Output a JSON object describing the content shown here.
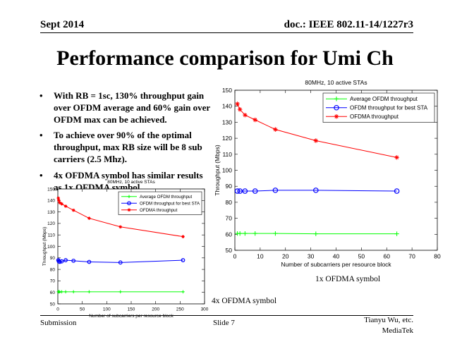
{
  "header": {
    "left": "Sept 2014",
    "right": "doc.: IEEE 802.11-14/1227r3"
  },
  "title": "Performance comparison for Umi Ch",
  "bullets": [
    "With RB = 1sc, 130% throughput gain over OFDM average and 60% gain over OFDM max can be achieved.",
    "To achieve over 90% of the optimal throughput, max RB size will be 8 sub carriers (2.5 Mhz).",
    "4x OFDMA symbol has similar results as 1x OFDMA symbol."
  ],
  "bullet_glyph": "•",
  "notes": {
    "right": "1x OFDMA symbol",
    "left": "4x OFDMA symbol"
  },
  "footer": {
    "left": "Submission",
    "center": "Slide 7",
    "right_line1": "Tianyu Wu, etc.",
    "right_line2": "MediaTek"
  },
  "colors": {
    "average": "#00ff00",
    "best_sta": "#0000ff",
    "ofdma": "#ff0000"
  },
  "chart_data": [
    {
      "id": "right",
      "type": "line",
      "title": "80MHz, 10 active STAs",
      "xlabel": "Number of subcarriers per resource block",
      "ylabel": "Throughput (Mbps)",
      "xlim": [
        0,
        80
      ],
      "ylim": [
        50,
        150
      ],
      "xticks": [
        0,
        10,
        20,
        30,
        40,
        50,
        60,
        70,
        80
      ],
      "yticks": [
        50,
        60,
        70,
        80,
        90,
        100,
        110,
        120,
        130,
        140,
        150
      ],
      "legend_position": "top-right",
      "grid": false,
      "series": [
        {
          "name": "Average OFDM throughput",
          "color": "#00ff00",
          "marker": "plus",
          "x": [
            1,
            2,
            4,
            8,
            16,
            32,
            64
          ],
          "y": [
            60.5,
            60.5,
            60.5,
            60.5,
            60.5,
            60.3,
            60.3
          ]
        },
        {
          "name": "OFDM throughput for best STA",
          "color": "#0000ff",
          "marker": "circle",
          "x": [
            1,
            2,
            4,
            8,
            16,
            32,
            64
          ],
          "y": [
            87,
            87,
            87,
            87,
            87.5,
            87.5,
            87
          ]
        },
        {
          "name": "OFDMA throughput",
          "color": "#ff0000",
          "marker": "star",
          "x": [
            1,
            2,
            4,
            8,
            16,
            32,
            64
          ],
          "y": [
            141.5,
            138,
            134.5,
            131.5,
            125.5,
            118.5,
            108
          ]
        }
      ]
    },
    {
      "id": "left",
      "type": "line",
      "title": "80MHz, 10 active STAs",
      "xlabel": "Number of subcarriers per resource block",
      "ylabel": "Throughput (Mbps)",
      "xlim": [
        0,
        300
      ],
      "ylim": [
        50,
        150
      ],
      "xticks": [
        0,
        50,
        100,
        150,
        200,
        250,
        300
      ],
      "yticks": [
        50,
        60,
        70,
        80,
        90,
        100,
        110,
        120,
        130,
        140,
        150
      ],
      "legend_position": "top-right",
      "grid": false,
      "series": [
        {
          "name": "Average OFDM throughput",
          "color": "#00ff00",
          "marker": "plus",
          "x": [
            1,
            2,
            4,
            8,
            16,
            32,
            64,
            128,
            256
          ],
          "y": [
            60.5,
            60.5,
            60.5,
            60.5,
            60.5,
            60.5,
            60.5,
            60.5,
            60.5
          ]
        },
        {
          "name": "OFDM throughput for best STA",
          "color": "#0000ff",
          "marker": "circle",
          "x": [
            1,
            2,
            4,
            8,
            16,
            32,
            64,
            128,
            256
          ],
          "y": [
            88,
            87,
            86.5,
            87,
            88,
            87.5,
            86.5,
            86,
            88
          ]
        },
        {
          "name": "OFDMA throughput",
          "color": "#ff0000",
          "marker": "star",
          "x": [
            1,
            2,
            4,
            8,
            16,
            32,
            64,
            128,
            256
          ],
          "y": [
            142,
            140,
            138,
            137,
            135,
            131.5,
            124.5,
            117,
            108.5
          ]
        }
      ]
    }
  ]
}
